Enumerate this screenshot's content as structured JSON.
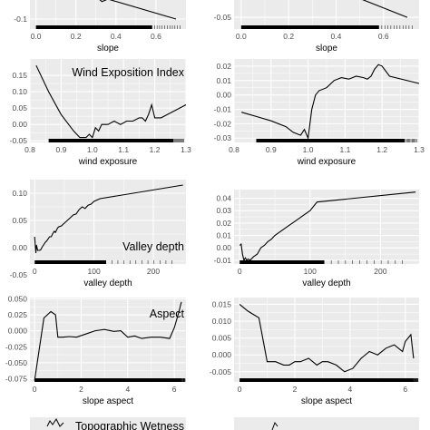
{
  "colors": {
    "panel": "#ebebeb",
    "grid": "#ffffff",
    "line": "#000000",
    "text": "#4d4d4d",
    "rug": "#000000"
  },
  "chart_data": [
    {
      "id": "slope-left",
      "type": "line",
      "title": "",
      "xlabel": "slope",
      "xlim": [
        -0.03,
        0.75
      ],
      "ylim": [
        -0.14,
        0.02
      ],
      "xticks": [
        "0.0",
        "0.2",
        "0.4",
        "0.6"
      ],
      "xtick_values": [
        0.0,
        0.2,
        0.4,
        0.6
      ],
      "yticks": [
        "-0.1"
      ],
      "ytick_values": [
        -0.1
      ],
      "x": [
        0.24,
        0.27,
        0.3,
        0.33,
        0.36,
        0.7
      ],
      "y": [
        0.02,
        0.0,
        -0.01,
        -0.03,
        -0.02,
        -0.1
      ],
      "rug": [
        0.0,
        0.58
      ]
    },
    {
      "id": "slope-right",
      "type": "line",
      "title": "",
      "xlabel": "slope",
      "xlim": [
        -0.03,
        0.75
      ],
      "ylim": [
        -0.075,
        0.01
      ],
      "xticks": [
        "0.0",
        "0.2",
        "0.4",
        "0.6"
      ],
      "xtick_values": [
        0.0,
        0.2,
        0.4,
        0.6
      ],
      "yticks": [
        "-0.05"
      ],
      "ytick_values": [
        -0.05
      ],
      "x": [
        0.38,
        0.5,
        0.6,
        0.7
      ],
      "y": [
        0.01,
        -0.01,
        -0.03,
        -0.05
      ],
      "rug": [
        0.0,
        0.58
      ]
    },
    {
      "id": "wind-left",
      "type": "line",
      "title": "Wind Exposition Index",
      "xlabel": "wind exposure",
      "xlim": [
        0.8,
        1.3
      ],
      "ylim": [
        -0.055,
        0.2
      ],
      "xticks": [
        "0.8",
        "0.9",
        "1.0",
        "1.1",
        "1.2",
        "1.3"
      ],
      "xtick_values": [
        0.8,
        0.9,
        1.0,
        1.1,
        1.2,
        1.3
      ],
      "yticks": [
        "-0.05",
        "0.00",
        "0.05",
        "0.10",
        "0.15"
      ],
      "ytick_values": [
        -0.05,
        0.0,
        0.05,
        0.1,
        0.15
      ],
      "x": [
        0.82,
        0.86,
        0.9,
        0.94,
        0.96,
        0.98,
        0.99,
        1.0,
        1.01,
        1.02,
        1.03,
        1.05,
        1.07,
        1.09,
        1.11,
        1.13,
        1.15,
        1.16,
        1.17,
        1.18,
        1.19,
        1.2,
        1.22,
        1.3
      ],
      "y": [
        0.18,
        0.1,
        0.03,
        -0.02,
        -0.04,
        -0.04,
        -0.03,
        -0.04,
        -0.01,
        -0.02,
        0.0,
        0.0,
        0.01,
        0.0,
        0.01,
        0.01,
        0.02,
        0.02,
        0.01,
        0.03,
        0.06,
        0.02,
        0.02,
        0.06
      ],
      "rug": [
        0.86,
        1.26
      ]
    },
    {
      "id": "wind-right",
      "type": "line",
      "title": "",
      "xlabel": "wind exposure",
      "xlim": [
        0.8,
        1.3
      ],
      "ylim": [
        -0.033,
        0.025
      ],
      "xticks": [
        "0.8",
        "0.9",
        "1.0",
        "1.1",
        "1.2",
        "1.3"
      ],
      "xtick_values": [
        0.8,
        0.9,
        1.0,
        1.1,
        1.2,
        1.3
      ],
      "yticks": [
        "-0.03",
        "-0.02",
        "-0.01",
        "0.00",
        "0.01",
        "0.02"
      ],
      "ytick_values": [
        -0.03,
        -0.02,
        -0.01,
        0.0,
        0.01,
        0.02
      ],
      "x": [
        0.82,
        0.86,
        0.9,
        0.94,
        0.96,
        0.98,
        0.99,
        1.0,
        1.01,
        1.02,
        1.03,
        1.05,
        1.07,
        1.09,
        1.11,
        1.13,
        1.15,
        1.16,
        1.17,
        1.18,
        1.19,
        1.2,
        1.22,
        1.3
      ],
      "y": [
        -0.012,
        -0.015,
        -0.018,
        -0.022,
        -0.026,
        -0.028,
        -0.024,
        -0.03,
        -0.01,
        0.0,
        0.003,
        0.005,
        0.01,
        0.012,
        0.011,
        0.013,
        0.012,
        0.011,
        0.013,
        0.018,
        0.021,
        0.02,
        0.013,
        0.008
      ],
      "rug": [
        0.86,
        1.26
      ]
    },
    {
      "id": "valley-left",
      "type": "line",
      "title": "Valley depth",
      "xlabel": "valley depth",
      "xlim": [
        -8,
        255
      ],
      "ylim": [
        -0.03,
        0.125
      ],
      "xticks": [
        "0",
        "100",
        "200"
      ],
      "xtick_values": [
        0,
        100,
        200
      ],
      "yticks": [
        "-0.05",
        "0.00",
        "0.05",
        "0.10"
      ],
      "ytick_values": [
        -0.05,
        0.0,
        0.05,
        0.1
      ],
      "x": [
        0,
        2,
        3,
        5,
        8,
        10,
        12,
        15,
        18,
        20,
        22,
        25,
        28,
        30,
        33,
        35,
        38,
        40,
        45,
        50,
        55,
        60,
        65,
        70,
        75,
        80,
        85,
        90,
        95,
        100,
        110,
        250
      ],
      "y": [
        0.02,
        -0.01,
        0.005,
        -0.005,
        -0.005,
        -0.004,
        0.0,
        0.005,
        0.01,
        0.012,
        0.015,
        0.02,
        0.02,
        0.025,
        0.03,
        0.028,
        0.035,
        0.038,
        0.04,
        0.045,
        0.05,
        0.055,
        0.06,
        0.062,
        0.07,
        0.075,
        0.072,
        0.078,
        0.08,
        0.085,
        0.09,
        0.115
      ],
      "rug": [
        0,
        120
      ]
    },
    {
      "id": "valley-right",
      "type": "line",
      "title": "",
      "xlabel": "valley depth",
      "xlim": [
        -8,
        255
      ],
      "ylim": [
        -0.013,
        0.047
      ],
      "xticks": [
        "0",
        "100",
        "200"
      ],
      "xtick_values": [
        0,
        100,
        200
      ],
      "yticks": [
        "-0.01",
        "0.00",
        "0.01",
        "0.02",
        "0.03",
        "0.04"
      ],
      "ytick_values": [
        -0.01,
        0.0,
        0.01,
        0.02,
        0.03,
        0.04
      ],
      "x": [
        0,
        2,
        4,
        6,
        8,
        10,
        12,
        15,
        18,
        20,
        25,
        30,
        35,
        40,
        45,
        50,
        60,
        70,
        80,
        90,
        100,
        110,
        250
      ],
      "y": [
        0.002,
        0.003,
        -0.005,
        -0.01,
        -0.008,
        -0.01,
        -0.009,
        -0.01,
        -0.008,
        -0.007,
        -0.005,
        0.0,
        0.002,
        0.005,
        0.007,
        0.01,
        0.014,
        0.018,
        0.022,
        0.026,
        0.03,
        0.037,
        0.045
      ],
      "rug": [
        0,
        120
      ]
    },
    {
      "id": "aspect-left",
      "type": "line",
      "title": "Aspect",
      "xlabel": "slope aspect",
      "xlim": [
        -0.2,
        6.5
      ],
      "ylim": [
        -0.08,
        0.052
      ],
      "xticks": [
        "0",
        "2",
        "4",
        "6"
      ],
      "xtick_values": [
        0,
        2,
        4,
        6
      ],
      "yticks": [
        "-0.075",
        "-0.050",
        "-0.025",
        "0.000",
        "0.025",
        "0.050"
      ],
      "ytick_values": [
        -0.075,
        -0.05,
        -0.025,
        0.0,
        0.025,
        0.05
      ],
      "x": [
        0.0,
        0.4,
        0.7,
        0.9,
        1.0,
        1.2,
        1.5,
        1.8,
        2.2,
        2.6,
        3.0,
        3.4,
        3.7,
        4.0,
        4.3,
        4.6,
        5.0,
        5.4,
        5.8,
        6.0,
        6.2,
        6.3
      ],
      "y": [
        -0.078,
        0.02,
        0.03,
        0.025,
        -0.01,
        -0.01,
        -0.009,
        -0.01,
        -0.005,
        0.0,
        0.002,
        -0.001,
        0.0,
        -0.01,
        -0.008,
        -0.012,
        -0.01,
        -0.01,
        -0.012,
        0.005,
        0.03,
        0.045
      ],
      "rug": [
        0.0,
        6.28
      ]
    },
    {
      "id": "aspect-right",
      "type": "line",
      "title": "",
      "xlabel": "slope aspect",
      "xlim": [
        -0.2,
        6.5
      ],
      "ylim": [
        -0.008,
        0.017
      ],
      "xticks": [
        "0",
        "2",
        "4",
        "6"
      ],
      "xtick_values": [
        0,
        2,
        4,
        6
      ],
      "yticks": [
        "-0.005",
        "0.000",
        "0.005",
        "0.010",
        "0.015"
      ],
      "ytick_values": [
        -0.005,
        0.0,
        0.005,
        0.01,
        0.015
      ],
      "x": [
        0.0,
        0.3,
        0.5,
        0.7,
        1.0,
        1.3,
        1.6,
        1.8,
        2.0,
        2.2,
        2.5,
        2.8,
        3.0,
        3.2,
        3.5,
        3.8,
        4.1,
        4.4,
        4.7,
        5.0,
        5.3,
        5.6,
        5.9,
        6.0,
        6.2,
        6.3
      ],
      "y": [
        0.015,
        0.013,
        0.012,
        0.011,
        -0.002,
        -0.002,
        -0.003,
        -0.003,
        -0.002,
        -0.002,
        -0.001,
        -0.003,
        -0.002,
        -0.002,
        -0.003,
        -0.005,
        -0.004,
        -0.001,
        0.001,
        0.0,
        0.002,
        0.003,
        0.001,
        0.004,
        0.006,
        -0.001
      ],
      "rug": [
        0.0,
        6.28
      ]
    },
    {
      "id": "twi-left",
      "type": "line",
      "title": "Topographic Wetness",
      "xlabel": "",
      "xlim": [
        0,
        1
      ],
      "ylim": [
        0,
        1
      ],
      "xticks": [],
      "xtick_values": [],
      "yticks": [],
      "ytick_values": [],
      "x": [],
      "y": [],
      "rug": []
    },
    {
      "id": "twi-right",
      "type": "line",
      "title": "",
      "xlabel": "",
      "xlim": [
        0,
        1
      ],
      "ylim": [
        0,
        1
      ],
      "xticks": [],
      "xtick_values": [],
      "yticks": [],
      "ytick_values": [],
      "x": [],
      "y": [],
      "rug": []
    }
  ]
}
